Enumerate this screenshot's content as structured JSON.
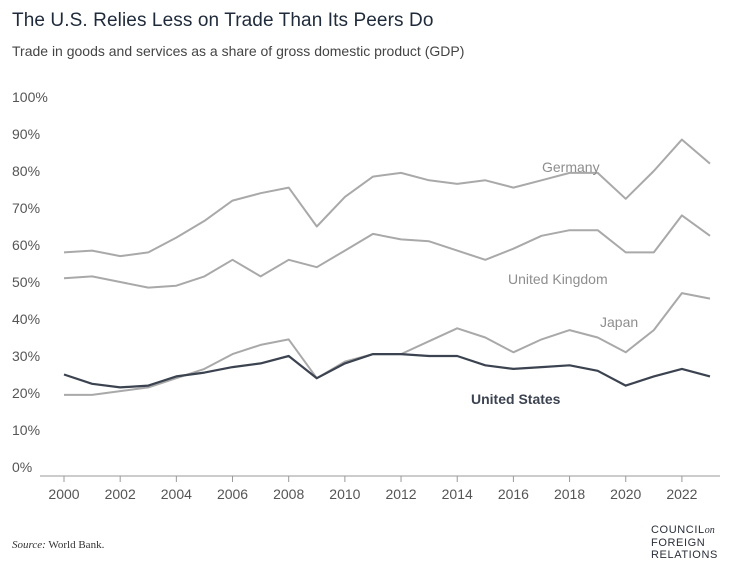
{
  "chart_data": {
    "type": "line",
    "title": "The U.S. Relies Less on Trade Than Its Peers Do",
    "subtitle": "Trade in goods and services as a share of gross domestic product (GDP)",
    "xlabel": "",
    "ylabel": "",
    "ylim": [
      0,
      100
    ],
    "yticks": [
      "100%",
      "90%",
      "80%",
      "70%",
      "60%",
      "50%",
      "40%",
      "30%",
      "20%",
      "10%",
      "0%"
    ],
    "ytick_values": [
      100,
      90,
      80,
      70,
      60,
      50,
      40,
      30,
      20,
      10,
      0
    ],
    "xticks": [
      "2000",
      "2002",
      "2004",
      "2006",
      "2008",
      "2010",
      "2012",
      "2014",
      "2016",
      "2018",
      "2020",
      "2022"
    ],
    "xtick_values": [
      2000,
      2002,
      2004,
      2006,
      2008,
      2010,
      2012,
      2014,
      2016,
      2018,
      2020,
      2022
    ],
    "x": [
      2000,
      2001,
      2002,
      2003,
      2004,
      2005,
      2006,
      2007,
      2008,
      2009,
      2010,
      2011,
      2012,
      2013,
      2014,
      2015,
      2016,
      2017,
      2018,
      2019,
      2020,
      2021,
      2022,
      2023
    ],
    "series": [
      {
        "name": "Germany",
        "color": "#a9a9a9",
        "values": [
          58,
          58.5,
          57,
          58,
          62,
          66.5,
          72,
          74,
          75.5,
          65,
          73,
          78.5,
          79.5,
          77.5,
          76.5,
          77.5,
          75.5,
          77.5,
          79.5,
          79.5,
          72.5,
          80,
          88.5,
          82
        ]
      },
      {
        "name": "United Kingdom",
        "color": "#a9a9a9",
        "values": [
          51,
          51.5,
          50,
          48.5,
          49,
          51.5,
          56,
          51.5,
          56,
          54,
          58.5,
          63,
          61.5,
          61,
          58.5,
          56,
          59,
          62.5,
          64,
          64,
          58,
          58,
          68,
          62.5
        ]
      },
      {
        "name": "Japan",
        "color": "#a9a9a9",
        "values": [
          19.5,
          19.5,
          20.5,
          21.5,
          24,
          26.5,
          30.5,
          33,
          34.5,
          24,
          28.5,
          30.5,
          30.5,
          34,
          37.5,
          35,
          31,
          34.5,
          37,
          35,
          31,
          37,
          47,
          45.5
        ]
      },
      {
        "name": "United States",
        "color": "#3c4350",
        "bold": true,
        "values": [
          25,
          22.5,
          21.5,
          22,
          24.5,
          25.5,
          27,
          28,
          30,
          24,
          28,
          30.5,
          30.5,
          30,
          30,
          27.5,
          26.5,
          27,
          27.5,
          26,
          22,
          24.5,
          26.5,
          24.5
        ]
      }
    ],
    "labels": [
      {
        "text": "Germany",
        "series": "Germany"
      },
      {
        "text": "United Kingdom",
        "series": "United Kingdom"
      },
      {
        "text": "Japan",
        "series": "Japan"
      },
      {
        "text": "United States",
        "series": "United States"
      }
    ],
    "grid": false
  },
  "source": {
    "label": "Source:",
    "text": "World Bank."
  },
  "logo": {
    "line1": "COUNCIL",
    "on": "on",
    "line2": "FOREIGN",
    "line3": "RELATIONS"
  }
}
